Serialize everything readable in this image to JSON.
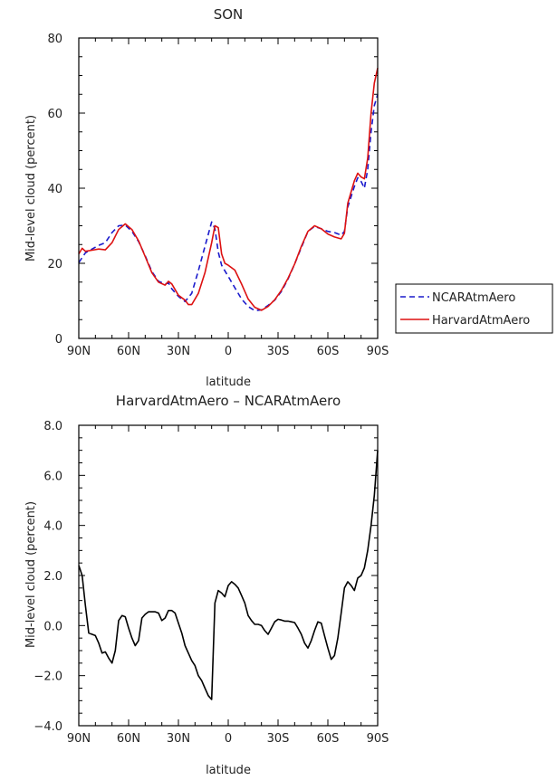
{
  "chart_data": [
    {
      "type": "line",
      "title": "SON",
      "xlabel": "latitude",
      "ylabel": "Mid-level cloud (percent)",
      "x_ticks": [
        90,
        60,
        30,
        0,
        -30,
        -60,
        -90
      ],
      "x_ticklabels": [
        "90N",
        "60N",
        "30N",
        "0",
        "30S",
        "60S",
        "90S"
      ],
      "xlim": [
        90,
        -90
      ],
      "ylim": [
        0,
        80
      ],
      "y_ticks": [
        0,
        20,
        40,
        60,
        80
      ],
      "y_ticklabels": [
        "0",
        "20",
        "40",
        "60",
        "80"
      ],
      "legend_position": "right",
      "series": [
        {
          "name": "NCARAtmAero",
          "color": "#1a1acc",
          "dash": "dashed",
          "x": [
            90,
            86,
            82,
            78,
            74,
            70,
            66,
            62,
            58,
            54,
            50,
            46,
            42,
            38,
            36,
            34,
            30,
            26,
            22,
            18,
            14,
            10,
            8,
            6,
            4,
            2,
            0,
            -4,
            -8,
            -12,
            -16,
            -20,
            -24,
            -28,
            -32,
            -36,
            -40,
            -44,
            -48,
            -52,
            -56,
            -60,
            -64,
            -68,
            -70,
            -72,
            -76,
            -78,
            -80,
            -82,
            -84,
            -86,
            -88,
            -90
          ],
          "y": [
            20.2,
            22.8,
            23.8,
            24.8,
            25.5,
            28.2,
            30.0,
            30.2,
            28.5,
            25.8,
            22.0,
            17.8,
            15.2,
            14.5,
            14.8,
            13.2,
            11.2,
            9.8,
            12.0,
            18.0,
            24.5,
            31.0,
            29.2,
            23.0,
            19.5,
            18.0,
            16.5,
            13.5,
            10.5,
            8.5,
            7.4,
            7.6,
            8.8,
            10.2,
            12.5,
            15.8,
            19.8,
            24.2,
            28.5,
            29.8,
            29.2,
            28.5,
            28.2,
            27.5,
            28.5,
            35.0,
            40.5,
            42.8,
            41.8,
            40.0,
            45.0,
            55.0,
            62.0,
            65.0
          ]
        },
        {
          "name": "HarvardAtmAero",
          "color": "#dd1111",
          "dash": "solid",
          "x": [
            90,
            88,
            86,
            82,
            78,
            74,
            70,
            66,
            62,
            58,
            54,
            50,
            46,
            42,
            38,
            36,
            34,
            30,
            26,
            24,
            22,
            18,
            14,
            10,
            8,
            6,
            4,
            2,
            0,
            -4,
            -8,
            -12,
            -16,
            -20,
            -24,
            -28,
            -32,
            -36,
            -40,
            -44,
            -48,
            -52,
            -56,
            -60,
            -64,
            -68,
            -70,
            -72,
            -76,
            -78,
            -80,
            -82,
            -84,
            -86,
            -88,
            -90
          ],
          "y": [
            22.5,
            24.0,
            23.2,
            23.5,
            23.8,
            23.6,
            25.5,
            29.0,
            30.5,
            29.0,
            26.0,
            21.8,
            17.5,
            15.0,
            14.2,
            15.2,
            14.5,
            11.5,
            10.2,
            9.0,
            9.0,
            12.0,
            17.5,
            25.5,
            30.0,
            29.5,
            22.5,
            20.0,
            19.5,
            18.2,
            14.5,
            10.5,
            8.3,
            7.5,
            8.5,
            10.3,
            12.8,
            16.0,
            19.8,
            24.5,
            28.5,
            30.0,
            29.2,
            27.8,
            27.0,
            26.5,
            28.0,
            36.0,
            42.0,
            44.0,
            43.0,
            42.5,
            48.0,
            60.0,
            68.0,
            72.0
          ]
        }
      ]
    },
    {
      "type": "line",
      "title": "HarvardAtmAero – NCARAtmAero",
      "xlabel": "latitude",
      "ylabel": "Mid-level cloud (percent)",
      "x_ticks": [
        90,
        60,
        30,
        0,
        -30,
        -60,
        -90
      ],
      "x_ticklabels": [
        "90N",
        "60N",
        "30N",
        "0",
        "30S",
        "60S",
        "90S"
      ],
      "xlim": [
        90,
        -90
      ],
      "ylim": [
        -4.0,
        8.0
      ],
      "y_ticks": [
        -4,
        -2,
        0,
        2,
        4,
        6,
        8
      ],
      "y_ticklabels": [
        "−4.0",
        "−2.0",
        "0.0",
        "2.0",
        "4.0",
        "6.0",
        "8.0"
      ],
      "series": [
        {
          "color": "#000000",
          "dash": "solid",
          "x": [
            90,
            88,
            86,
            84,
            82,
            80,
            78,
            76,
            74,
            72,
            70,
            68,
            66,
            64,
            62,
            60,
            58,
            56,
            54,
            52,
            50,
            48,
            46,
            44,
            42,
            40,
            38,
            36,
            34,
            32,
            30,
            28,
            26,
            24,
            22,
            20,
            18,
            16,
            14,
            12,
            10,
            8,
            6,
            4,
            2,
            0,
            -2,
            -4,
            -6,
            -8,
            -10,
            -12,
            -14,
            -16,
            -18,
            -20,
            -22,
            -24,
            -26,
            -28,
            -30,
            -32,
            -34,
            -36,
            -38,
            -40,
            -42,
            -44,
            -46,
            -48,
            -50,
            -52,
            -54,
            -56,
            -58,
            -60,
            -62,
            -64,
            -66,
            -68,
            -70,
            -72,
            -74,
            -76,
            -78,
            -80,
            -82,
            -84,
            -86,
            -88,
            -90
          ],
          "y": [
            2.4,
            2.0,
            0.8,
            -0.3,
            -0.35,
            -0.4,
            -0.7,
            -1.1,
            -1.05,
            -1.3,
            -1.5,
            -1.0,
            0.2,
            0.4,
            0.35,
            -0.1,
            -0.5,
            -0.8,
            -0.6,
            0.3,
            0.45,
            0.55,
            0.55,
            0.55,
            0.5,
            0.2,
            0.3,
            0.6,
            0.6,
            0.5,
            0.1,
            -0.3,
            -0.8,
            -1.1,
            -1.4,
            -1.6,
            -2.0,
            -2.2,
            -2.5,
            -2.8,
            -2.95,
            0.9,
            1.4,
            1.3,
            1.15,
            1.6,
            1.75,
            1.65,
            1.5,
            1.2,
            0.9,
            0.4,
            0.2,
            0.05,
            0.05,
            0.0,
            -0.2,
            -0.35,
            -0.1,
            0.15,
            0.25,
            0.22,
            0.18,
            0.18,
            0.15,
            0.12,
            -0.1,
            -0.35,
            -0.7,
            -0.9,
            -0.6,
            -0.2,
            0.15,
            0.1,
            -0.4,
            -0.9,
            -1.35,
            -1.2,
            -0.5,
            0.5,
            1.5,
            1.75,
            1.6,
            1.4,
            1.9,
            2.0,
            2.3,
            3.0,
            4.0,
            5.2,
            7.0
          ]
        }
      ]
    }
  ]
}
